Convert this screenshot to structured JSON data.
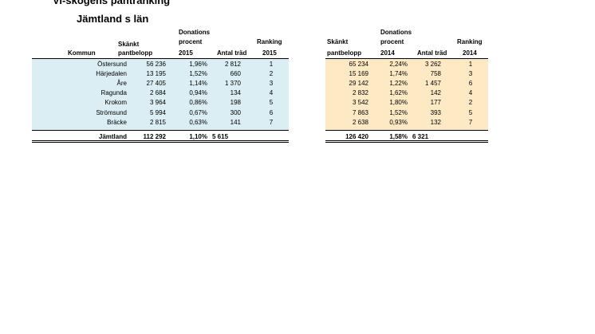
{
  "title": "Vi-skogens pantranking",
  "subtitle": "Jämtland s län",
  "headers_2015": {
    "kommun": "Kommun",
    "skankt": [
      "Skänkt",
      "pantbelopp"
    ],
    "procent": [
      "Donations",
      "procent",
      "2015"
    ],
    "antal": "Antal träd",
    "ranking": [
      "Ranking",
      "2015"
    ]
  },
  "headers_2014": {
    "skankt": [
      "Skänkt",
      "pantbelopp"
    ],
    "procent": [
      "Donations",
      "procent",
      "2014"
    ],
    "antal": "Antal träd",
    "ranking": [
      "Ranking",
      "2014"
    ]
  },
  "rows": [
    {
      "kommun": "Östersund",
      "s15": "56 236",
      "p15": "1,96%",
      "a15": "2 812",
      "r15": "1",
      "s14": "65 234",
      "p14": "2,24%",
      "a14": "3 262",
      "r14": "1"
    },
    {
      "kommun": "Härjedalen",
      "s15": "13 195",
      "p15": "1,52%",
      "a15": "660",
      "r15": "2",
      "s14": "15 169",
      "p14": "1,74%",
      "a14": "758",
      "r14": "3"
    },
    {
      "kommun": "Åre",
      "s15": "27 405",
      "p15": "1,14%",
      "a15": "1 370",
      "r15": "3",
      "s14": "29 142",
      "p14": "1,22%",
      "a14": "1 457",
      "r14": "6"
    },
    {
      "kommun": "Ragunda",
      "s15": "2 684",
      "p15": "0,94%",
      "a15": "134",
      "r15": "4",
      "s14": "2 832",
      "p14": "1,62%",
      "a14": "142",
      "r14": "4"
    },
    {
      "kommun": "Krokom",
      "s15": "3 964",
      "p15": "0,86%",
      "a15": "198",
      "r15": "5",
      "s14": "3 542",
      "p14": "1,80%",
      "a14": "177",
      "r14": "2"
    },
    {
      "kommun": "Strömsund",
      "s15": "5 994",
      "p15": "0,67%",
      "a15": "300",
      "r15": "6",
      "s14": "7 863",
      "p14": "1,52%",
      "a14": "393",
      "r14": "5"
    },
    {
      "kommun": "Bräcke",
      "s15": "2 815",
      "p15": "0,63%",
      "a15": "141",
      "r15": "7",
      "s14": "2 638",
      "p14": "0,93%",
      "a14": "132",
      "r14": "7"
    }
  ],
  "total": {
    "kommun": "Jämtland",
    "s15": "112 292",
    "p15": "1,10%",
    "a15": "5 615",
    "s14": "126 420",
    "p14": "1,58%",
    "a14": "6 321"
  },
  "colors": {
    "band_2015": "#daeef3",
    "band_2014": "#fde9c4"
  }
}
